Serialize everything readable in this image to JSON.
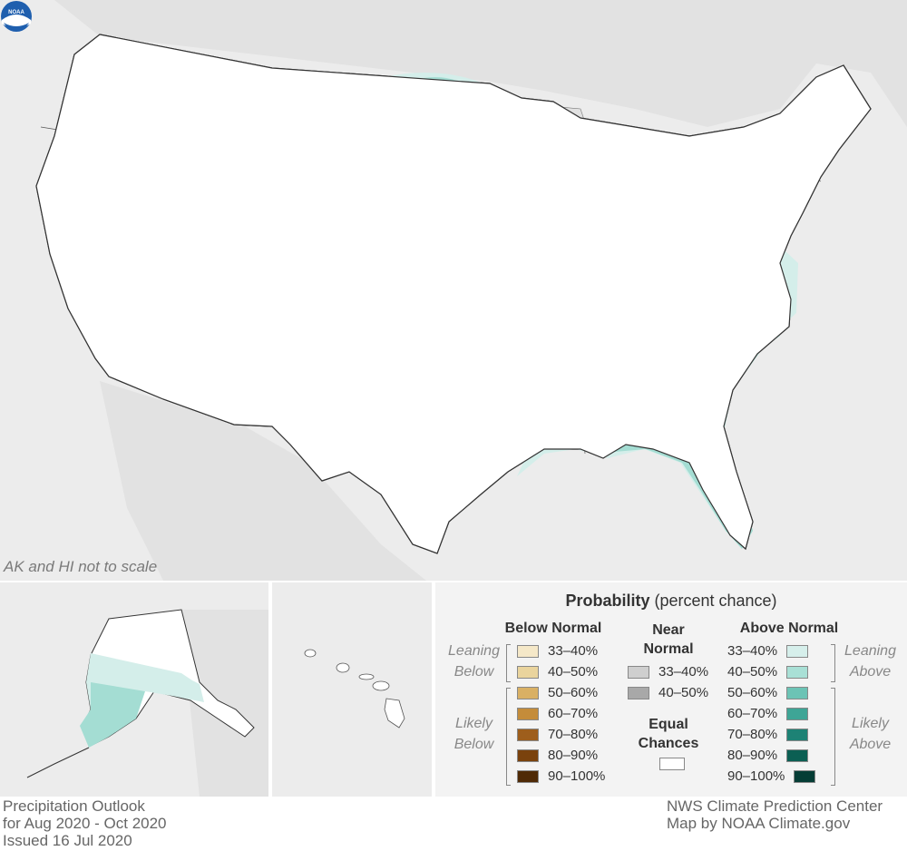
{
  "map": {
    "scale_note": "AK and HI not to scale",
    "logo_icon": "noaa-logo-icon",
    "colors": {
      "land": "#ffffff",
      "ocean": "#ececec",
      "border": "#555555",
      "below_33_40": "#f4e6c6",
      "below_40_50": "#e8cf98",
      "above_33_40": "#d4eeea",
      "above_40_50": "#a4ddd3"
    }
  },
  "legend": {
    "title_bold": "Probability",
    "title_rest": "(percent chance)",
    "below": {
      "header": "Below Normal",
      "leaning": "Leaning Below",
      "likely": "Likely Below",
      "items": [
        {
          "label": "33–40%",
          "color": "#f5e8c8"
        },
        {
          "label": "40–50%",
          "color": "#ead49d"
        },
        {
          "label": "50–60%",
          "color": "#d9b064"
        },
        {
          "label": "60–70%",
          "color": "#c48c3a"
        },
        {
          "label": "70–80%",
          "color": "#9e5e1c"
        },
        {
          "label": "80–90%",
          "color": "#7a420d"
        },
        {
          "label": "90–100%",
          "color": "#4f2a06"
        }
      ]
    },
    "near": {
      "header": "Near Normal",
      "items": [
        {
          "label": "33–40%",
          "color": "#cfcfcf"
        },
        {
          "label": "40–50%",
          "color": "#a8a8a8"
        }
      ],
      "equal_label": "Equal Chances",
      "equal_color": "#ffffff"
    },
    "above": {
      "header": "Above Normal",
      "leaning": "Leaning Above",
      "likely": "Likely Above",
      "items": [
        {
          "label": "33–40%",
          "color": "#d6efeb"
        },
        {
          "label": "40–50%",
          "color": "#a9e0d6"
        },
        {
          "label": "50–60%",
          "color": "#6cc3b5"
        },
        {
          "label": "60–70%",
          "color": "#3ea596"
        },
        {
          "label": "70–80%",
          "color": "#1d8275"
        },
        {
          "label": "80–90%",
          "color": "#0b5f53"
        },
        {
          "label": "90–100%",
          "color": "#053d35"
        }
      ]
    }
  },
  "footer": {
    "left": [
      "Precipitation Outlook",
      "for Aug 2020 - Oct 2020",
      "Issued 16 Jul 2020"
    ],
    "right": [
      "NWS Climate Prediction Center",
      "Map by NOAA Climate.gov"
    ]
  }
}
